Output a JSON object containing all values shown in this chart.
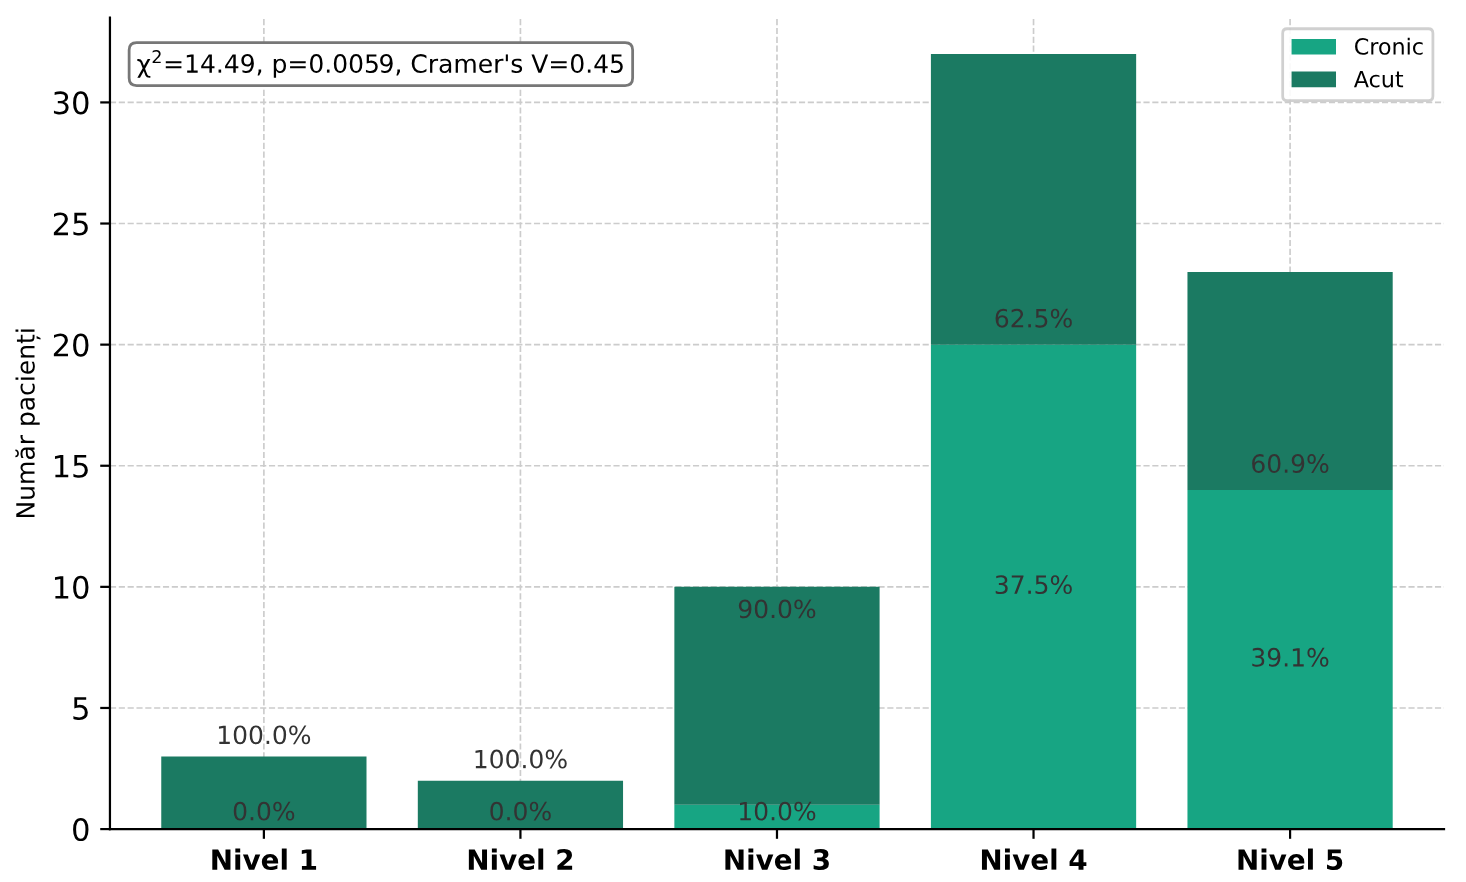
{
  "chart_data": {
    "type": "bar",
    "stacked": true,
    "ylabel": "Număr pacienți",
    "categories": [
      "Nivel 1",
      "Nivel 2",
      "Nivel 3",
      "Nivel 4",
      "Nivel 5"
    ],
    "series": [
      {
        "name": "Cronic",
        "color": "#17a583",
        "values": [
          0,
          0,
          1,
          20,
          14
        ]
      },
      {
        "name": "Acut",
        "color": "#1b7a62",
        "values": [
          3,
          2,
          9,
          12,
          9
        ]
      }
    ],
    "ylim": [
      0,
      33.5
    ],
    "yticks": [
      0,
      5,
      10,
      15,
      20,
      25,
      30
    ],
    "grid": true,
    "legend": "top right",
    "annotations": [
      "χ$^{2}$=14.49, p=0.0059, Cramer's V=0.45",
      "100.0%",
      "0.0%",
      "100.0%",
      "0.0%",
      "90.0%",
      "10.0%",
      "62.5%",
      "37.5%",
      "60.9%",
      "39.1%"
    ]
  }
}
